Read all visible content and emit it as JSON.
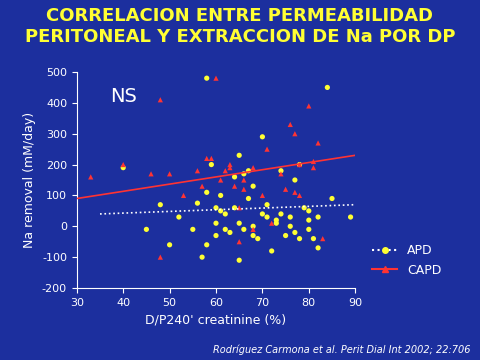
{
  "chart_data": {
    "type": "scatter",
    "title": "CORRELACION ENTRE PERMEABILIDAD\nPERITONEAL Y EXTRACCION DE Na POR DP",
    "x_label": "D/P240' creatinine (%)",
    "y_label": "Na removal (mM/day)",
    "annotation": "NS",
    "source": "Rodríguez Carmona et al. Perit Dial Int 2002; 22:706",
    "xlim": [
      30,
      90
    ],
    "xticks": [
      30,
      40,
      50,
      60,
      70,
      80,
      90
    ],
    "ylim": [
      -200,
      500
    ],
    "yticks": [
      -200,
      -100,
      0,
      100,
      200,
      300,
      400,
      500
    ],
    "legend": "right",
    "series": [
      {
        "name": "APD",
        "color": "#ffff33",
        "marker": "circle",
        "x": [
          40,
          45,
          48,
          50,
          52,
          55,
          56,
          57,
          58,
          58,
          58,
          59,
          60,
          60,
          60,
          61,
          61,
          62,
          62,
          63,
          64,
          64,
          65,
          65,
          65,
          66,
          66,
          67,
          67,
          68,
          68,
          68,
          69,
          70,
          70,
          71,
          71,
          72,
          73,
          73,
          74,
          74,
          75,
          76,
          76,
          77,
          77,
          78,
          78,
          79,
          80,
          80,
          80,
          81,
          82,
          82,
          84,
          85,
          89
        ],
        "values": [
          190,
          -10,
          70,
          -60,
          30,
          -10,
          75,
          -100,
          480,
          110,
          -60,
          200,
          60,
          10,
          -30,
          50,
          100,
          40,
          -10,
          -20,
          160,
          60,
          230,
          -110,
          10,
          170,
          -10,
          180,
          90,
          0,
          130,
          -30,
          -40,
          290,
          40,
          30,
          70,
          -80,
          20,
          10,
          180,
          40,
          -30,
          30,
          0,
          -20,
          150,
          -40,
          200,
          60,
          50,
          20,
          -10,
          -40,
          30,
          -70,
          450,
          90,
          30
        ],
        "trend": {
          "x": [
            35,
            90
          ],
          "values": [
            40,
            70
          ],
          "color": "#ffffff",
          "line_style": "dotted"
        }
      },
      {
        "name": "CAPD",
        "color": "#ff3333",
        "marker": "triangle",
        "x": [
          33,
          40,
          46,
          48,
          48,
          50,
          53,
          56,
          57,
          58,
          59,
          60,
          61,
          62,
          63,
          63,
          64,
          65,
          65,
          66,
          66,
          68,
          68,
          70,
          71,
          72,
          74,
          75,
          76,
          77,
          77,
          78,
          78,
          80,
          81,
          81,
          82,
          83
        ],
        "values": [
          160,
          200,
          170,
          410,
          -100,
          170,
          100,
          180,
          130,
          220,
          220,
          480,
          150,
          180,
          200,
          190,
          130,
          -50,
          60,
          150,
          120,
          190,
          -10,
          100,
          250,
          10,
          170,
          120,
          330,
          300,
          110,
          200,
          100,
          390,
          210,
          190,
          270,
          -40
        ],
        "trend": {
          "x": [
            30,
            90
          ],
          "values": [
            90,
            230
          ],
          "color": "#ff3333",
          "line_style": "solid"
        }
      }
    ]
  }
}
